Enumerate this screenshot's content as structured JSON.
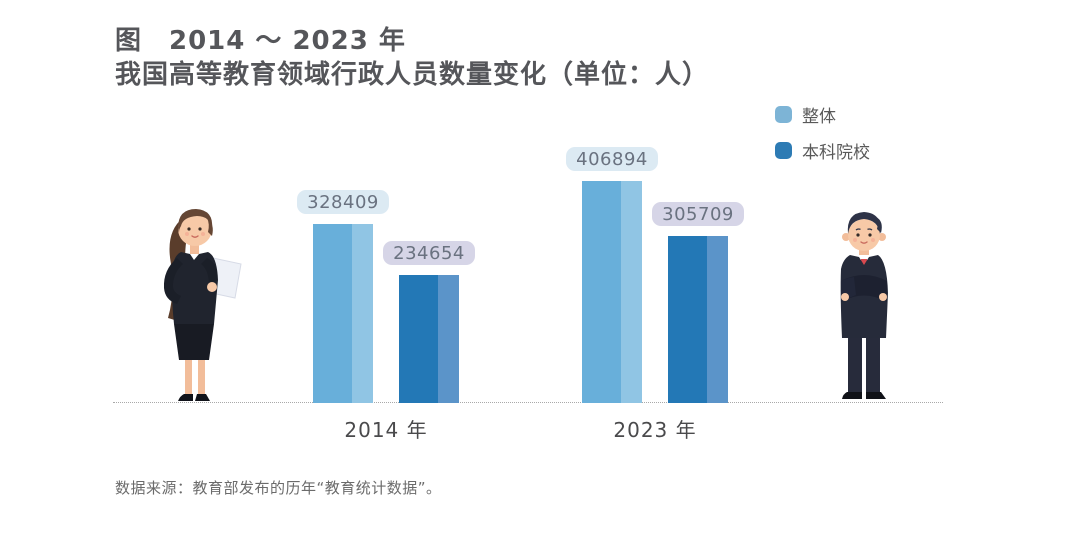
{
  "title": {
    "line1": "图　2014 ～ 2023 年",
    "line2": "我国高等教育领域行政人员数量变化（单位：人）"
  },
  "chart_data": {
    "type": "bar",
    "title": "2014～2023 年我国高等教育领域行政人员数量变化（单位：人）",
    "categories": [
      "2014 年",
      "2023 年"
    ],
    "series": [
      {
        "name": "整体",
        "values": [
          328409,
          406894
        ],
        "color": "#68afda",
        "highlight_color": "#90c5e4",
        "label_bg": "#dceaf3",
        "legend_color": "#7db4d6"
      },
      {
        "name": "本科院校",
        "values": [
          234654,
          305709
        ],
        "color": "#2378b6",
        "highlight_color": "#5b94c9",
        "label_bg": "#d6d5e7",
        "legend_color": "#2d7bb4"
      }
    ],
    "ylim": [
      0,
      406894
    ],
    "grid": false,
    "legend_position": "top-right",
    "value_labels": true,
    "value_label_text_color": "#6a7280",
    "axis_line_style": "dotted"
  },
  "source_note": "数据来源：教育部发布的历年“教育统计数据”。",
  "illustrations": {
    "left": "businesswoman-with-document",
    "right": "businessman-arms-crossed"
  }
}
